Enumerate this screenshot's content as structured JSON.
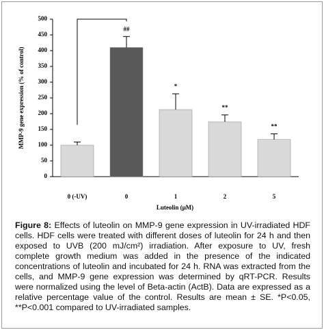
{
  "chart_data": {
    "type": "bar",
    "x_label": "Luteolin (μM)",
    "y_label": "MMP-9 gene expression (% of control)",
    "categories": [
      "0 (-UV)",
      "0",
      "1",
      "2",
      "5"
    ],
    "series": [
      {
        "colors": [
          "#d9d9d9",
          "#595959",
          "#d9d9d9",
          "#d9d9d9",
          "#d9d9d9"
        ],
        "values": [
          100,
          410,
          213,
          174,
          118
        ],
        "errors": [
          10,
          35,
          50,
          22,
          18
        ],
        "annotations": [
          null,
          "##",
          "*",
          "**",
          "**"
        ]
      }
    ],
    "ylim": [
      0,
      500
    ],
    "yticks": [
      0,
      50,
      100,
      150,
      200,
      250,
      300,
      350,
      400,
      450,
      500
    ]
  },
  "caption": {
    "label": "Figure 8:",
    "text": " Effects of luteolin on MMP-9 gene expression in UV-irradiated HDF cells. HDF cells were treated with different doses of luteolin for 24 h and then exposed to UVB (200 mJ/cm²) irradiation. After exposure to UV, fresh complete growth medium was added in the presence of the indicated concentrations of luteolin and incubated for 24 h. RNA was extracted from the cells, and MMP-9 gene expression was determined by qRT-PCR. Results were normalized using the level of Beta-actin (ActB). Data are expressed as a relative percentage value of the control. Results are mean ± SE. *P<0.05, **P<0.001 compared to UV-irradiated samples."
  }
}
